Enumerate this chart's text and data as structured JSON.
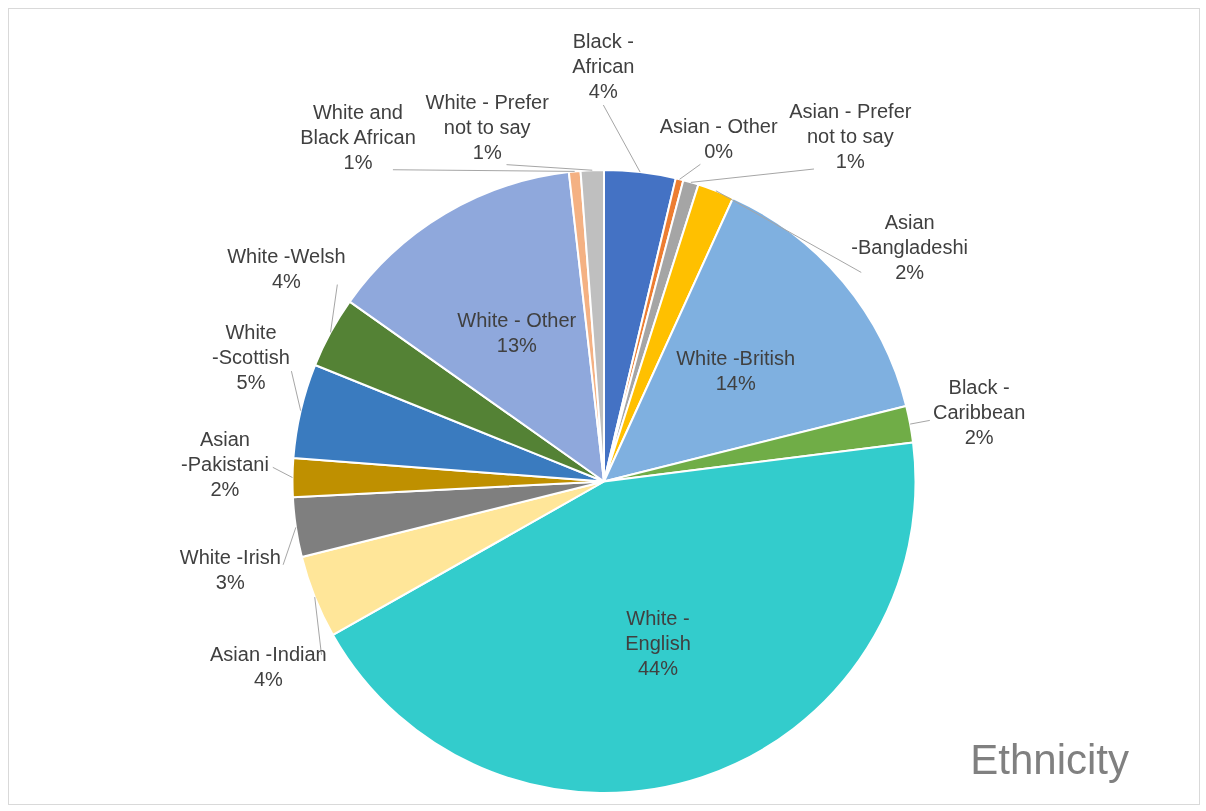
{
  "chart_data": {
    "type": "pie",
    "title": "Ethnicity",
    "legend": false,
    "categories": [
      "Black - African",
      "Asian - Other",
      "Asian - Prefer not to say",
      "Asian -Bangladeshi",
      "White -British",
      "Black - Caribbean",
      "White - English",
      "Asian -Indian",
      "White -Irish",
      "Asian -Pakistani",
      "White -Scottish",
      "White -Welsh",
      "White - Other",
      "White and Black African",
      "White - Prefer not to say"
    ],
    "values": [
      3.7,
      0.4,
      0.8,
      1.9,
      14.3,
      1.9,
      43.8,
      4.3,
      3.1,
      2.0,
      4.9,
      3.7,
      13.4,
      0.6,
      1.2
    ],
    "value_labels": [
      "4%",
      "0%",
      "1%",
      "2%",
      "14%",
      "2%",
      "44%",
      "4%",
      "3%",
      "2%",
      "5%",
      "4%",
      "13%",
      "1%",
      "1%"
    ],
    "colors": [
      "#4472c4",
      "#ed7d31",
      "#a5a5a5",
      "#ffc000",
      "#7fb0e0",
      "#70ad47",
      "#33cccc",
      "#ffe699",
      "#7f7f7f",
      "#bf9000",
      "#3a7bbf",
      "#548235",
      "#8fa8dc",
      "#f4b183",
      "#bfbfbf"
    ]
  }
}
